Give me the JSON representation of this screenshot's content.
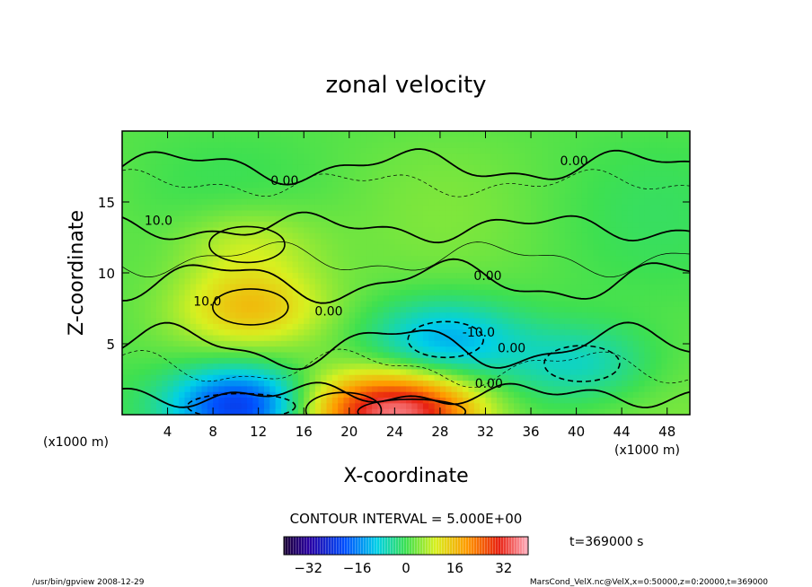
{
  "chart_data": {
    "type": "heatmap",
    "title": "zonal velocity",
    "xlabel": "X-coordinate",
    "ylabel": "Z-coordinate",
    "x_unit": "(x1000 m)",
    "y_unit": "(x1000 m)",
    "xlim": [
      0,
      50
    ],
    "ylim": [
      0,
      20
    ],
    "x_ticks": [
      4,
      8,
      12,
      16,
      20,
      24,
      28,
      32,
      36,
      40,
      44,
      48
    ],
    "y_ticks": [
      5,
      10,
      15
    ],
    "contour_interval_text": "CONTOUR INTERVAL = 5.000E+00",
    "time_text": "t=369000 s",
    "colorbar": {
      "range": [
        -40,
        40
      ],
      "ticks": [
        -32,
        -16,
        0,
        16,
        32
      ]
    },
    "contour_labels": [
      {
        "text": "0.00",
        "x": 14.3,
        "y": 16.2
      },
      {
        "text": "0.00",
        "x": 39.8,
        "y": 17.6
      },
      {
        "text": "10.0",
        "x": 3.2,
        "y": 13.4
      },
      {
        "text": "10.0",
        "x": 7.5,
        "y": 7.7
      },
      {
        "text": "0.00",
        "x": 32.2,
        "y": 9.5
      },
      {
        "text": "0.00",
        "x": 18.2,
        "y": 7.0
      },
      {
        "text": "-10.0",
        "x": 31.4,
        "y": 5.5
      },
      {
        "text": "0.00",
        "x": 34.3,
        "y": 4.4
      },
      {
        "text": "0.00",
        "x": 32.3,
        "y": 1.9
      }
    ],
    "velocity_features": [
      {
        "kind": "max",
        "x": 11.3,
        "y": 7.6,
        "value": 14
      },
      {
        "kind": "max",
        "x": 11.0,
        "y": 12.0,
        "value": 8
      },
      {
        "kind": "min",
        "x": 10.5,
        "y": 0.6,
        "value": -28
      },
      {
        "kind": "min",
        "x": 28.5,
        "y": 5.3,
        "value": -13
      },
      {
        "kind": "min",
        "x": 40.5,
        "y": 3.6,
        "value": -9
      },
      {
        "kind": "max",
        "x": 25.5,
        "y": 0.2,
        "value": 30
      },
      {
        "kind": "max",
        "x": 19.5,
        "y": 0.3,
        "value": 14
      }
    ]
  },
  "footer": {
    "left": "/usr/bin/gpview   2008-12-29",
    "right": "MarsCond_VelX.nc@VelX,x=0:50000,z=0:20000,t=369000"
  }
}
